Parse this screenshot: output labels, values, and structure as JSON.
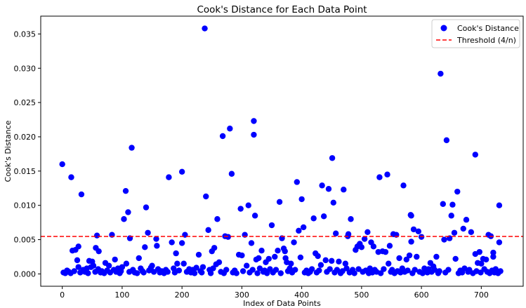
{
  "chart_data": {
    "type": "scatter",
    "title": "Cook's Distance for Each Data Point",
    "xlabel": "Index of Data Points",
    "ylabel": "Cook's Distance",
    "xlim": [
      -36,
      770
    ],
    "ylim": [
      -0.0018,
      0.0376
    ],
    "xticks": [
      0,
      100,
      200,
      300,
      400,
      500,
      600,
      700
    ],
    "xtick_labels": [
      "0",
      "100",
      "200",
      "300",
      "400",
      "500",
      "600",
      "700"
    ],
    "yticks": [
      0.0,
      0.005,
      0.01,
      0.015,
      0.02,
      0.025,
      0.03,
      0.035
    ],
    "ytick_labels": [
      "0.000",
      "0.005",
      "0.010",
      "0.015",
      "0.020",
      "0.025",
      "0.030",
      "0.035"
    ],
    "grid": false,
    "legend_position": "top-right",
    "legend": [
      {
        "label": "Cook's Distance",
        "kind": "marker",
        "color": "#0000ff"
      },
      {
        "label": "Threshold (4/n)",
        "kind": "dashed-line",
        "color": "#ff0000"
      }
    ],
    "threshold": 0.00546,
    "series": [
      {
        "name": "Cook's Distance",
        "color": "#0000ff",
        "points": [
          [
            0,
            0.016
          ],
          [
            15,
            0.0141
          ],
          [
            32,
            0.0116
          ],
          [
            17,
            0.0034
          ],
          [
            22,
            0.0035
          ],
          [
            27,
            0.004
          ],
          [
            25,
            0.002
          ],
          [
            27,
            0.001
          ],
          [
            45,
            0.0019
          ],
          [
            50,
            0.0018
          ],
          [
            56,
            0.0038
          ],
          [
            58,
            0.0056
          ],
          [
            61,
            0.0033
          ],
          [
            48,
            0.001
          ],
          [
            52,
            0.0012
          ],
          [
            83,
            0.0057
          ],
          [
            88,
            0.0021
          ],
          [
            72,
            0.0016
          ],
          [
            78,
            0.0012
          ],
          [
            103,
            0.008
          ],
          [
            106,
            0.0121
          ],
          [
            110,
            0.009
          ],
          [
            113,
            0.0052
          ],
          [
            116,
            0.0184
          ],
          [
            107,
            0.0015
          ],
          [
            100,
            0.001
          ],
          [
            128,
            0.0023
          ],
          [
            138,
            0.0039
          ],
          [
            140,
            0.0097
          ],
          [
            143,
            0.006
          ],
          [
            157,
            0.0051
          ],
          [
            158,
            0.0041
          ],
          [
            150,
            0.0012
          ],
          [
            178,
            0.0141
          ],
          [
            183,
            0.0046
          ],
          [
            190,
            0.003
          ],
          [
            192,
            0.0015
          ],
          [
            200,
            0.0149
          ],
          [
            200,
            0.0045
          ],
          [
            205,
            0.0057
          ],
          [
            203,
            0.0015
          ],
          [
            228,
            0.0028
          ],
          [
            235,
            0.001
          ],
          [
            238,
            0.0358
          ],
          [
            240,
            0.0113
          ],
          [
            244,
            0.0064
          ],
          [
            250,
            0.0033
          ],
          [
            254,
            0.0038
          ],
          [
            257,
            0.0014
          ],
          [
            259,
            0.008
          ],
          [
            262,
            0.0017
          ],
          [
            268,
            0.0201
          ],
          [
            272,
            0.0055
          ],
          [
            277,
            0.0054
          ],
          [
            280,
            0.0212
          ],
          [
            283,
            0.0146
          ],
          [
            295,
            0.0028
          ],
          [
            298,
            0.0095
          ],
          [
            300,
            0.0027
          ],
          [
            305,
            0.0057
          ],
          [
            308,
            0.0012
          ],
          [
            311,
            0.01
          ],
          [
            316,
            0.0045
          ],
          [
            320,
            0.0223
          ],
          [
            320,
            0.0203
          ],
          [
            322,
            0.0085
          ],
          [
            324,
            0.0021
          ],
          [
            328,
            0.0023
          ],
          [
            333,
            0.0034
          ],
          [
            340,
            0.0017
          ],
          [
            345,
            0.0022
          ],
          [
            350,
            0.0071
          ],
          [
            355,
            0.0025
          ],
          [
            360,
            0.0034
          ],
          [
            363,
            0.0105
          ],
          [
            367,
            0.0052
          ],
          [
            370,
            0.0037
          ],
          [
            372,
            0.0033
          ],
          [
            373,
            0.0023
          ],
          [
            375,
            0.0017
          ],
          [
            382,
            0.0015
          ],
          [
            387,
            0.0046
          ],
          [
            392,
            0.0134
          ],
          [
            395,
            0.0063
          ],
          [
            398,
            0.0024
          ],
          [
            400,
            0.0109
          ],
          [
            403,
            0.0068
          ],
          [
            420,
            0.0081
          ],
          [
            423,
            0.003
          ],
          [
            427,
            0.0026
          ],
          [
            432,
            0.0013
          ],
          [
            434,
            0.0129
          ],
          [
            437,
            0.0084
          ],
          [
            440,
            0.002
          ],
          [
            445,
            0.0124
          ],
          [
            450,
            0.0019
          ],
          [
            451,
            0.0169
          ],
          [
            453,
            0.0104
          ],
          [
            457,
            0.0059
          ],
          [
            462,
            0.0018
          ],
          [
            470,
            0.0123
          ],
          [
            473,
            0.0015
          ],
          [
            477,
            0.0055
          ],
          [
            478,
            0.0058
          ],
          [
            482,
            0.008
          ],
          [
            490,
            0.0035
          ],
          [
            493,
            0.004
          ],
          [
            497,
            0.0044
          ],
          [
            500,
            0.0039
          ],
          [
            505,
            0.0051
          ],
          [
            510,
            0.0061
          ],
          [
            516,
            0.0046
          ],
          [
            520,
            0.004
          ],
          [
            528,
            0.0032
          ],
          [
            530,
            0.0141
          ],
          [
            535,
            0.0033
          ],
          [
            540,
            0.0032
          ],
          [
            543,
            0.0145
          ],
          [
            547,
            0.0041
          ],
          [
            545,
            0.0015
          ],
          [
            553,
            0.0058
          ],
          [
            558,
            0.0057
          ],
          [
            563,
            0.0023
          ],
          [
            570,
            0.0129
          ],
          [
            575,
            0.0021
          ],
          [
            580,
            0.0027
          ],
          [
            582,
            0.0086
          ],
          [
            583,
            0.0085
          ],
          [
            583,
            0.0047
          ],
          [
            587,
            0.0065
          ],
          [
            592,
            0.0025
          ],
          [
            595,
            0.0062
          ],
          [
            600,
            0.0054
          ],
          [
            605,
            0.0008
          ],
          [
            615,
            0.0016
          ],
          [
            620,
            0.0011
          ],
          [
            625,
            0.0025
          ],
          [
            632,
            0.0292
          ],
          [
            636,
            0.0102
          ],
          [
            638,
            0.005
          ],
          [
            642,
            0.0195
          ],
          [
            647,
            0.0052
          ],
          [
            650,
            0.0085
          ],
          [
            652,
            0.0101
          ],
          [
            655,
            0.006
          ],
          [
            657,
            0.0022
          ],
          [
            660,
            0.012
          ],
          [
            670,
            0.0066
          ],
          [
            675,
            0.0079
          ],
          [
            683,
            0.0061
          ],
          [
            690,
            0.0174
          ],
          [
            690,
            0.0029
          ],
          [
            694,
            0.0016
          ],
          [
            697,
            0.0032
          ],
          [
            700,
            0.0015
          ],
          [
            703,
            0.0022
          ],
          [
            708,
            0.0021
          ],
          [
            712,
            0.0057
          ],
          [
            716,
            0.0055
          ],
          [
            720,
            0.0025
          ],
          [
            720,
            0.0031
          ],
          [
            730,
            0.01
          ],
          [
            730,
            0.0046
          ],
          [
            726,
            0.0003
          ],
          [
            2,
            0.0002
          ],
          [
            5,
            0.0001
          ],
          [
            8,
            0.0005
          ],
          [
            11,
            0.0003
          ],
          [
            14,
            0.0001
          ],
          [
            20,
            0.0004
          ],
          [
            30,
            0.0002
          ],
          [
            35,
            0.0006
          ],
          [
            38,
            0.0003
          ],
          [
            41,
            0.0008
          ],
          [
            43,
            0.0001
          ],
          [
            55,
            0.0003
          ],
          [
            60,
            0.0007
          ],
          [
            64,
            0.0002
          ],
          [
            66,
            0.0004
          ],
          [
            70,
            0.0001
          ],
          [
            75,
            0.0005
          ],
          [
            80,
            0.0002
          ],
          [
            86,
            0.0006
          ],
          [
            90,
            0.0003
          ],
          [
            93,
            0.0008
          ],
          [
            96,
            0.0001
          ],
          [
            98,
            0.0004
          ],
          [
            112,
            0.0003
          ],
          [
            118,
            0.0006
          ],
          [
            121,
            0.0002
          ],
          [
            125,
            0.0001
          ],
          [
            131,
            0.0008
          ],
          [
            134,
            0.0004
          ],
          [
            136,
            0.0002
          ],
          [
            145,
            0.0005
          ],
          [
            148,
            0.0009
          ],
          [
            153,
            0.0003
          ],
          [
            160,
            0.0007
          ],
          [
            163,
            0.0002
          ],
          [
            166,
            0.0004
          ],
          [
            170,
            0.0001
          ],
          [
            173,
            0.0006
          ],
          [
            176,
            0.0003
          ],
          [
            186,
            0.0008
          ],
          [
            188,
            0.0002
          ],
          [
            195,
            0.0005
          ],
          [
            208,
            0.0003
          ],
          [
            212,
            0.0007
          ],
          [
            215,
            0.0002
          ],
          [
            218,
            0.0006
          ],
          [
            221,
            0.0001
          ],
          [
            224,
            0.0009
          ],
          [
            231,
            0.0004
          ],
          [
            233,
            0.0002
          ],
          [
            246,
            0.0006
          ],
          [
            248,
            0.0001
          ],
          [
            252,
            0.0008
          ],
          [
            265,
            0.0003
          ],
          [
            270,
            0.0001
          ],
          [
            274,
            0.0006
          ],
          [
            285,
            0.0002
          ],
          [
            288,
            0.0005
          ],
          [
            291,
            0.0001
          ],
          [
            302,
            0.0004
          ],
          [
            313,
            0.0002
          ],
          [
            318,
            0.0006
          ],
          [
            326,
            0.0001
          ],
          [
            330,
            0.0008
          ],
          [
            336,
            0.0003
          ],
          [
            338,
            0.0005
          ],
          [
            342,
            0.0001
          ],
          [
            347,
            0.0007
          ],
          [
            352,
            0.0002
          ],
          [
            357,
            0.0006
          ],
          [
            365,
            0.0001
          ],
          [
            377,
            0.0004
          ],
          [
            380,
            0.0008
          ],
          [
            384,
            0.0002
          ],
          [
            389,
            0.0006
          ],
          [
            405,
            0.0002
          ],
          [
            408,
            0.0005
          ],
          [
            411,
            0.0001
          ],
          [
            414,
            0.0003
          ],
          [
            417,
            0.0007
          ],
          [
            425,
            0.0002
          ],
          [
            429,
            0.0005
          ],
          [
            442,
            0.0003
          ],
          [
            447,
            0.0007
          ],
          [
            455,
            0.0002
          ],
          [
            459,
            0.0006
          ],
          [
            465,
            0.0001
          ],
          [
            468,
            0.0004
          ],
          [
            475,
            0.0008
          ],
          [
            480,
            0.0002
          ],
          [
            485,
            0.0006
          ],
          [
            488,
            0.0001
          ],
          [
            495,
            0.0007
          ],
          [
            502,
            0.0003
          ],
          [
            507,
            0.0005
          ],
          [
            512,
            0.0001
          ],
          [
            514,
            0.0008
          ],
          [
            518,
            0.0002
          ],
          [
            522,
            0.0006
          ],
          [
            525,
            0.0003
          ],
          [
            532,
            0.0001
          ],
          [
            537,
            0.0007
          ],
          [
            549,
            0.0003
          ],
          [
            551,
            0.0006
          ],
          [
            555,
            0.0001
          ],
          [
            560,
            0.0004
          ],
          [
            565,
            0.0002
          ],
          [
            568,
            0.0008
          ],
          [
            572,
            0.0003
          ],
          [
            577,
            0.0005
          ],
          [
            585,
            0.0001
          ],
          [
            589,
            0.0006
          ],
          [
            597,
            0.0003
          ],
          [
            602,
            0.0001
          ],
          [
            607,
            0.0005
          ],
          [
            610,
            0.0002
          ],
          [
            612,
            0.0007
          ],
          [
            617,
            0.0003
          ],
          [
            622,
            0.0006
          ],
          [
            628,
            0.0001
          ],
          [
            630,
            0.0004
          ],
          [
            640,
            0.0002
          ],
          [
            645,
            0.0006
          ],
          [
            662,
            0.0001
          ],
          [
            665,
            0.0005
          ],
          [
            668,
            0.0002
          ],
          [
            672,
            0.0008
          ],
          [
            678,
            0.0003
          ],
          [
            680,
            0.0006
          ],
          [
            686,
            0.0001
          ],
          [
            692,
            0.0004
          ],
          [
            699,
            0.0002
          ],
          [
            705,
            0.0007
          ],
          [
            710,
            0.0003
          ],
          [
            714,
            0.0001
          ],
          [
            718,
            0.0005
          ],
          [
            722,
            0.0002
          ],
          [
            724,
            0.0007
          ],
          [
            728,
            0.0001
          ],
          [
            732,
            0.0004
          ]
        ]
      }
    ]
  }
}
